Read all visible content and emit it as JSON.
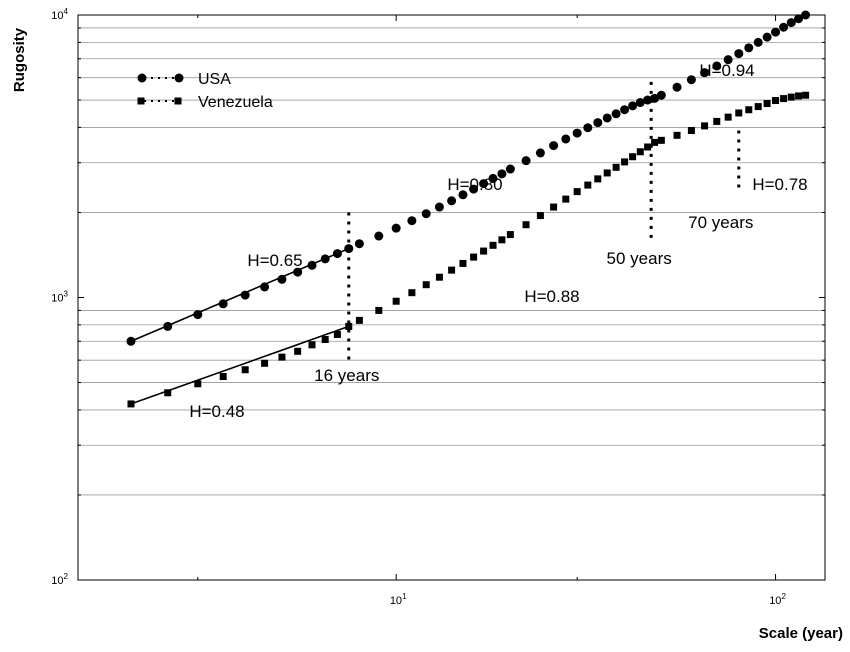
{
  "chart_data": {
    "type": "scatter",
    "title": "",
    "xlabel": "Scale (year)",
    "ylabel": "Rugosity",
    "xscale": "log",
    "yscale": "log",
    "xlim": [
      1.45,
      135
    ],
    "ylim": [
      100,
      10000
    ],
    "xticks": [
      {
        "base": "10",
        "exp": "1"
      },
      {
        "base": "10",
        "exp": "2"
      }
    ],
    "yticks": [
      {
        "base": "10",
        "exp": "2"
      },
      {
        "base": "10",
        "exp": "3"
      },
      {
        "base": "10",
        "exp": "4"
      }
    ],
    "grid": "horizontal",
    "legend_position": "top-left",
    "series": [
      {
        "name": "USA",
        "marker": "circle",
        "points": [
          [
            2,
            700
          ],
          [
            2.5,
            790
          ],
          [
            3,
            870
          ],
          [
            3.5,
            950
          ],
          [
            4,
            1020
          ],
          [
            4.5,
            1090
          ],
          [
            5,
            1160
          ],
          [
            5.5,
            1230
          ],
          [
            6,
            1300
          ],
          [
            6.5,
            1370
          ],
          [
            7,
            1430
          ],
          [
            7.5,
            1490
          ],
          [
            8,
            1550
          ],
          [
            9,
            1650
          ],
          [
            10,
            1760
          ],
          [
            11,
            1870
          ],
          [
            12,
            1980
          ],
          [
            13,
            2090
          ],
          [
            14,
            2200
          ],
          [
            15,
            2310
          ],
          [
            16,
            2420
          ],
          [
            17,
            2530
          ],
          [
            18,
            2640
          ],
          [
            19,
            2740
          ],
          [
            20,
            2850
          ],
          [
            22,
            3050
          ],
          [
            24,
            3250
          ],
          [
            26,
            3450
          ],
          [
            28,
            3640
          ],
          [
            30,
            3820
          ],
          [
            32,
            3990
          ],
          [
            34,
            4160
          ],
          [
            36,
            4320
          ],
          [
            38,
            4470
          ],
          [
            40,
            4620
          ],
          [
            42,
            4770
          ],
          [
            44,
            4900
          ],
          [
            46,
            5000
          ],
          [
            48,
            5070
          ],
          [
            50,
            5200
          ],
          [
            55,
            5550
          ],
          [
            60,
            5900
          ],
          [
            65,
            6250
          ],
          [
            70,
            6600
          ],
          [
            75,
            6950
          ],
          [
            80,
            7300
          ],
          [
            85,
            7650
          ],
          [
            90,
            8000
          ],
          [
            95,
            8350
          ],
          [
            100,
            8700
          ],
          [
            105,
            9050
          ],
          [
            110,
            9400
          ],
          [
            115,
            9700
          ],
          [
            120,
            10000
          ]
        ],
        "segments": [
          {
            "label": "H=0.65",
            "x_range": [
              2,
              7.5
            ]
          },
          {
            "label": "H=0.80",
            "x_range": [
              7.5,
              47
            ]
          },
          {
            "label": "H=0.94",
            "x_range": [
              47,
              120
            ]
          }
        ]
      },
      {
        "name": "Venezuela",
        "marker": "square",
        "points": [
          [
            2,
            420
          ],
          [
            2.5,
            460
          ],
          [
            3,
            495
          ],
          [
            3.5,
            525
          ],
          [
            4,
            555
          ],
          [
            4.5,
            585
          ],
          [
            5,
            615
          ],
          [
            5.5,
            645
          ],
          [
            6,
            680
          ],
          [
            6.5,
            710
          ],
          [
            7,
            740
          ],
          [
            7.5,
            790
          ],
          [
            8,
            830
          ],
          [
            9,
            900
          ],
          [
            10,
            970
          ],
          [
            11,
            1040
          ],
          [
            12,
            1110
          ],
          [
            13,
            1180
          ],
          [
            14,
            1250
          ],
          [
            15,
            1320
          ],
          [
            16,
            1390
          ],
          [
            17,
            1460
          ],
          [
            18,
            1530
          ],
          [
            19,
            1600
          ],
          [
            20,
            1670
          ],
          [
            22,
            1810
          ],
          [
            24,
            1950
          ],
          [
            26,
            2090
          ],
          [
            28,
            2230
          ],
          [
            30,
            2370
          ],
          [
            32,
            2500
          ],
          [
            34,
            2630
          ],
          [
            36,
            2760
          ],
          [
            38,
            2890
          ],
          [
            40,
            3020
          ],
          [
            42,
            3150
          ],
          [
            44,
            3280
          ],
          [
            46,
            3410
          ],
          [
            48,
            3540
          ],
          [
            50,
            3600
          ],
          [
            55,
            3750
          ],
          [
            60,
            3900
          ],
          [
            65,
            4050
          ],
          [
            70,
            4200
          ],
          [
            75,
            4350
          ],
          [
            80,
            4500
          ],
          [
            85,
            4620
          ],
          [
            90,
            4740
          ],
          [
            95,
            4860
          ],
          [
            100,
            4980
          ],
          [
            105,
            5060
          ],
          [
            110,
            5120
          ],
          [
            115,
            5170
          ],
          [
            120,
            5200
          ]
        ],
        "segments": [
          {
            "label": "H=0.48",
            "x_range": [
              2,
              7.5
            ]
          },
          {
            "label": "H=0.88",
            "x_range": [
              7.5,
              47
            ]
          },
          {
            "label": "H=0.78",
            "x_range": [
              47,
              120
            ]
          }
        ]
      }
    ],
    "breakpoints": [
      {
        "x": 7.5,
        "label": "16 years"
      },
      {
        "x": 47,
        "label": "50 years"
      },
      {
        "x": 80,
        "label": "70 years"
      }
    ]
  }
}
